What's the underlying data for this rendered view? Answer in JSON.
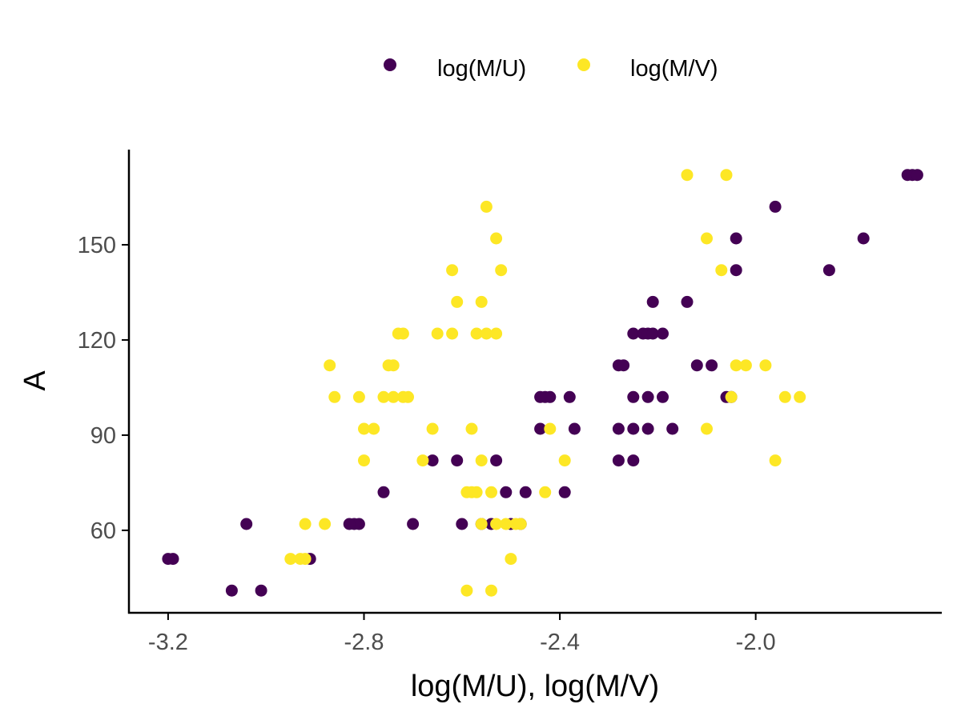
{
  "chart_data": {
    "type": "scatter",
    "title": "",
    "xlabel": "log(M/U), log(M/V)",
    "ylabel": "A",
    "xlim": [
      -3.28,
      -1.62
    ],
    "ylim": [
      34,
      180
    ],
    "x_ticks": [
      -3.2,
      -2.8,
      -2.4,
      -2.0
    ],
    "x_tick_labels": [
      "-3.2",
      "-2.8",
      "-2.4",
      "-2.0"
    ],
    "y_ticks": [
      60,
      90,
      120,
      150
    ],
    "y_tick_labels": [
      "60",
      "90",
      "120",
      "150"
    ],
    "grid": false,
    "legend_position": "top",
    "series": [
      {
        "name": "log(M/U)",
        "color": "#440154",
        "points": [
          [
            -1.69,
            172
          ],
          [
            -1.68,
            172
          ],
          [
            -1.67,
            172
          ],
          [
            -1.96,
            162
          ],
          [
            -1.78,
            152
          ],
          [
            -2.04,
            152
          ],
          [
            -1.85,
            142
          ],
          [
            -2.04,
            142
          ],
          [
            -2.14,
            132
          ],
          [
            -2.21,
            132
          ],
          [
            -2.25,
            122
          ],
          [
            -2.23,
            122
          ],
          [
            -2.22,
            122
          ],
          [
            -2.21,
            122
          ],
          [
            -2.19,
            122
          ],
          [
            -2.12,
            112
          ],
          [
            -2.09,
            112
          ],
          [
            -2.28,
            112
          ],
          [
            -2.27,
            112
          ],
          [
            -2.06,
            102
          ],
          [
            -2.05,
            102
          ],
          [
            -2.19,
            102
          ],
          [
            -2.22,
            102
          ],
          [
            -2.25,
            102
          ],
          [
            -2.38,
            102
          ],
          [
            -2.42,
            102
          ],
          [
            -2.43,
            102
          ],
          [
            -2.44,
            102
          ],
          [
            -2.17,
            92
          ],
          [
            -2.22,
            92
          ],
          [
            -2.25,
            92
          ],
          [
            -2.28,
            92
          ],
          [
            -2.37,
            92
          ],
          [
            -2.44,
            92
          ],
          [
            -2.25,
            82
          ],
          [
            -2.28,
            82
          ],
          [
            -2.53,
            82
          ],
          [
            -2.61,
            82
          ],
          [
            -2.66,
            82
          ],
          [
            -2.39,
            72
          ],
          [
            -2.47,
            72
          ],
          [
            -2.51,
            72
          ],
          [
            -2.76,
            72
          ],
          [
            -2.48,
            62
          ],
          [
            -2.5,
            62
          ],
          [
            -2.54,
            62
          ],
          [
            -2.56,
            62
          ],
          [
            -2.6,
            62
          ],
          [
            -2.7,
            62
          ],
          [
            -2.81,
            62
          ],
          [
            -2.82,
            62
          ],
          [
            -2.83,
            62
          ],
          [
            -3.04,
            62
          ],
          [
            -2.91,
            51
          ],
          [
            -3.19,
            51
          ],
          [
            -3.2,
            51
          ],
          [
            -3.01,
            41
          ],
          [
            -3.07,
            41
          ]
        ]
      },
      {
        "name": "log(M/V)",
        "color": "#fde725",
        "points": [
          [
            -2.14,
            172
          ],
          [
            -2.06,
            172
          ],
          [
            -2.55,
            162
          ],
          [
            -2.1,
            152
          ],
          [
            -2.53,
            152
          ],
          [
            -2.07,
            142
          ],
          [
            -2.52,
            142
          ],
          [
            -2.62,
            142
          ],
          [
            -2.61,
            132
          ],
          [
            -2.56,
            132
          ],
          [
            -2.72,
            122
          ],
          [
            -2.73,
            122
          ],
          [
            -2.65,
            122
          ],
          [
            -2.62,
            122
          ],
          [
            -2.57,
            122
          ],
          [
            -2.55,
            122
          ],
          [
            -2.53,
            122
          ],
          [
            -2.02,
            112
          ],
          [
            -2.04,
            112
          ],
          [
            -1.98,
            112
          ],
          [
            -2.74,
            112
          ],
          [
            -2.75,
            112
          ],
          [
            -2.87,
            112
          ],
          [
            -1.91,
            102
          ],
          [
            -1.94,
            102
          ],
          [
            -2.05,
            102
          ],
          [
            -2.71,
            102
          ],
          [
            -2.72,
            102
          ],
          [
            -2.74,
            102
          ],
          [
            -2.76,
            102
          ],
          [
            -2.81,
            102
          ],
          [
            -2.86,
            102
          ],
          [
            -2.42,
            92
          ],
          [
            -2.1,
            92
          ],
          [
            -2.58,
            92
          ],
          [
            -2.66,
            92
          ],
          [
            -2.78,
            92
          ],
          [
            -2.8,
            92
          ],
          [
            -1.96,
            82
          ],
          [
            -2.39,
            82
          ],
          [
            -2.56,
            82
          ],
          [
            -2.68,
            82
          ],
          [
            -2.8,
            82
          ],
          [
            -2.43,
            72
          ],
          [
            -2.57,
            72
          ],
          [
            -2.58,
            72
          ],
          [
            -2.59,
            72
          ],
          [
            -2.54,
            72
          ],
          [
            -2.48,
            62
          ],
          [
            -2.49,
            62
          ],
          [
            -2.51,
            62
          ],
          [
            -2.53,
            62
          ],
          [
            -2.56,
            62
          ],
          [
            -2.88,
            62
          ],
          [
            -2.92,
            62
          ],
          [
            -2.5,
            51
          ],
          [
            -2.92,
            51
          ],
          [
            -2.93,
            51
          ],
          [
            -2.95,
            51
          ],
          [
            -2.54,
            41
          ],
          [
            -2.59,
            41
          ]
        ]
      }
    ]
  }
}
